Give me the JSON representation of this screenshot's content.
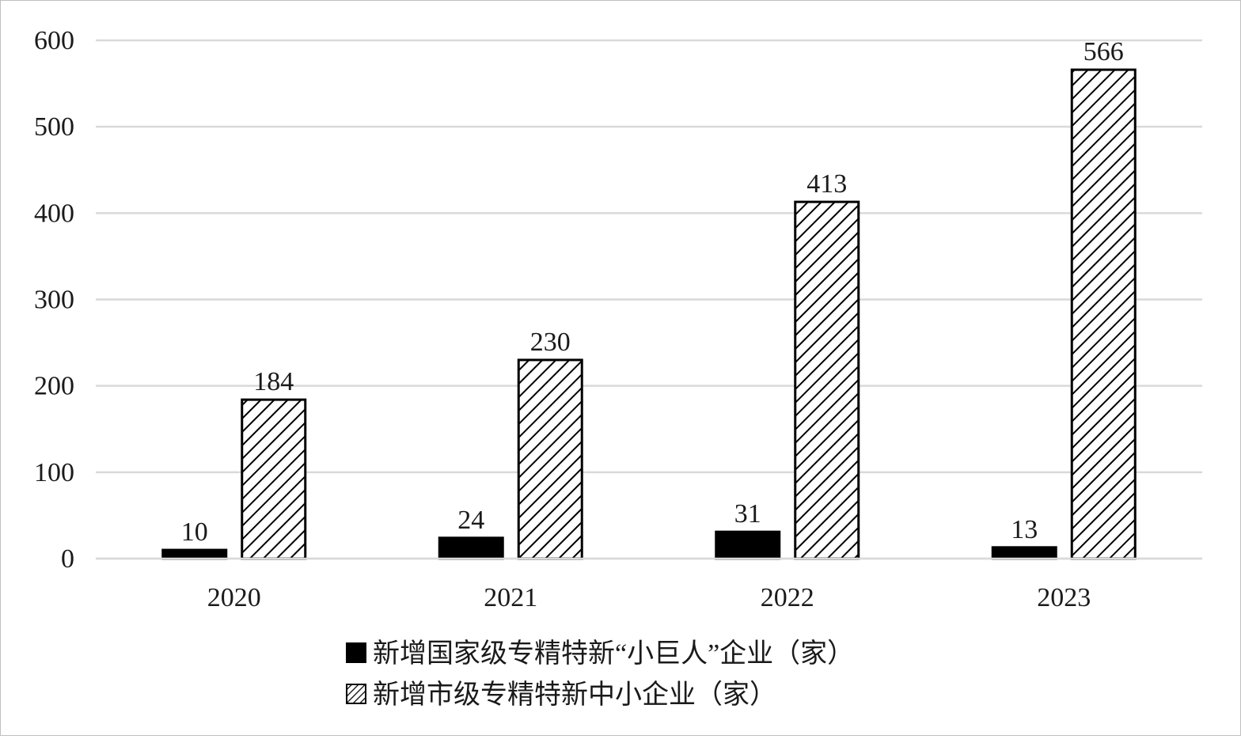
{
  "chart_data": {
    "type": "bar",
    "categories": [
      "2020",
      "2021",
      "2022",
      "2023"
    ],
    "series": [
      {
        "name": "新增国家级专精特新“小巨人”企业（家）",
        "values": [
          10,
          24,
          31,
          13
        ],
        "fill": "solid",
        "color": "#000000"
      },
      {
        "name": "新增市级专精特新中小企业（家）",
        "values": [
          184,
          230,
          413,
          566
        ],
        "fill": "hatch",
        "color": "#000000"
      }
    ],
    "yticks": [
      "0",
      "100",
      "200",
      "300",
      "400",
      "500",
      "600"
    ],
    "ylim": [
      0,
      600
    ],
    "grid": true,
    "legend": "bottom",
    "colors": {
      "gridline": "#d9d9d9",
      "bar": "#000000",
      "background": "#ffffff"
    }
  }
}
